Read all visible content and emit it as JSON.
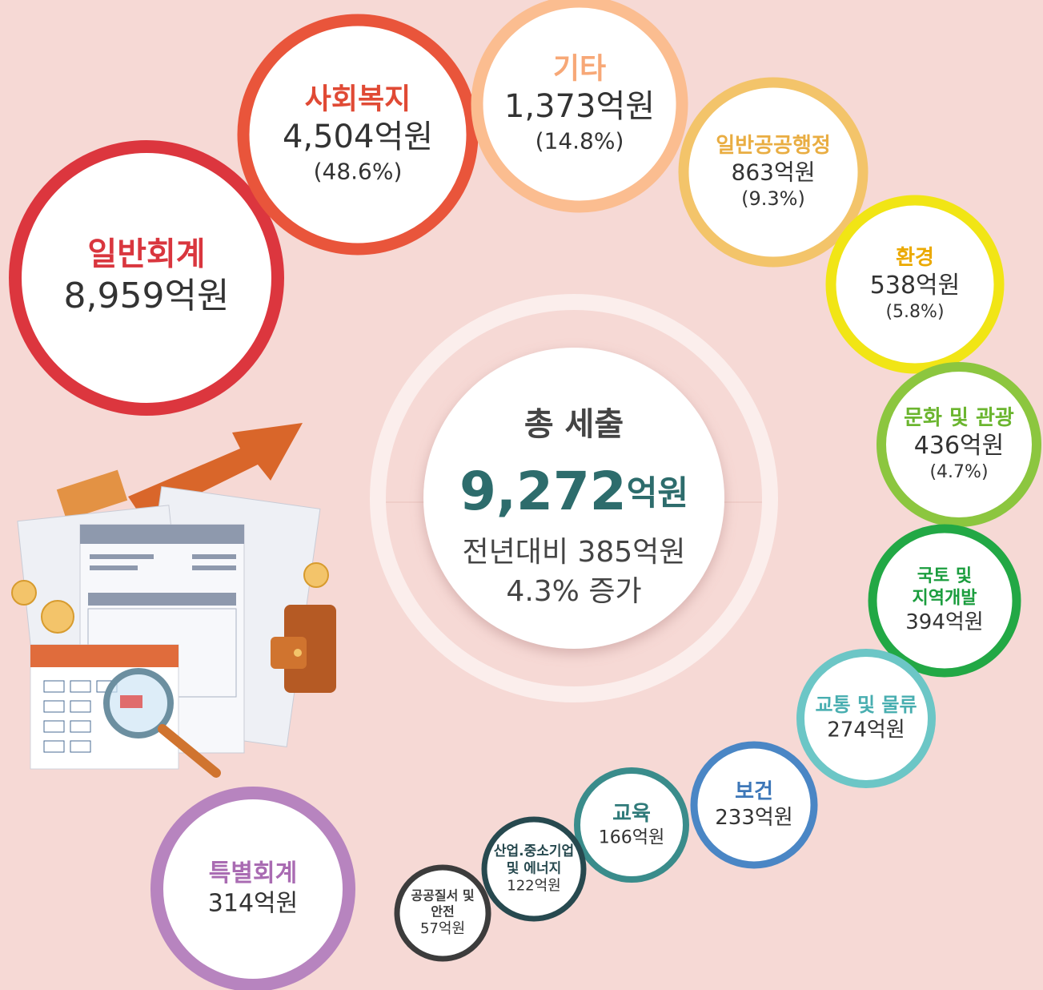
{
  "center": {
    "title": "총 세출",
    "total": "9,272",
    "unit": "억원",
    "change_lines": [
      "전년대비 385억원",
      "4.3% 증가"
    ]
  },
  "nodes": [
    {
      "title_lines": [
        "일반회계"
      ],
      "amount": "8,959억원",
      "color": "#dc363e"
    },
    {
      "title_lines": [
        "사회복지"
      ],
      "amount": "4,504억원",
      "share": "(48.6%)",
      "color": "#e9553b"
    },
    {
      "title_lines": [
        "기타"
      ],
      "amount": "1,373억원",
      "share": "(14.8%)",
      "color": "#fbbd90"
    },
    {
      "title_lines": [
        "일반공공행정"
      ],
      "amount": "863억원",
      "share": "(9.3%)",
      "color": "#f3c46a"
    },
    {
      "title_lines": [
        "환경"
      ],
      "amount": "538억원",
      "share": "(5.8%)",
      "color": "#f1e515"
    },
    {
      "title_lines": [
        "문화 및 관광"
      ],
      "amount": "436억원",
      "share": "(4.7%)",
      "color": "#8cc63f"
    },
    {
      "title_lines": [
        "국토 및",
        "지역개발"
      ],
      "amount": "394억원",
      "color": "#22a845"
    },
    {
      "title_lines": [
        "교통 및 물류"
      ],
      "amount": "274억원",
      "color": "#6cc6c6"
    },
    {
      "title_lines": [
        "보건"
      ],
      "amount": "233억원",
      "color": "#4a86c5"
    },
    {
      "title_lines": [
        "교육"
      ],
      "amount": "166억원",
      "color": "#3a8c8b"
    },
    {
      "title_lines": [
        "산업.중소기업",
        "및 에너지"
      ],
      "amount": "122억원",
      "color": "#27494f"
    },
    {
      "title_lines": [
        "공공질서 및",
        "안전"
      ],
      "amount": "57억원",
      "color": "#3c3c3c"
    },
    {
      "title_lines": [
        "특별회계"
      ],
      "amount": "314억원",
      "color": "#b784bf"
    }
  ]
}
